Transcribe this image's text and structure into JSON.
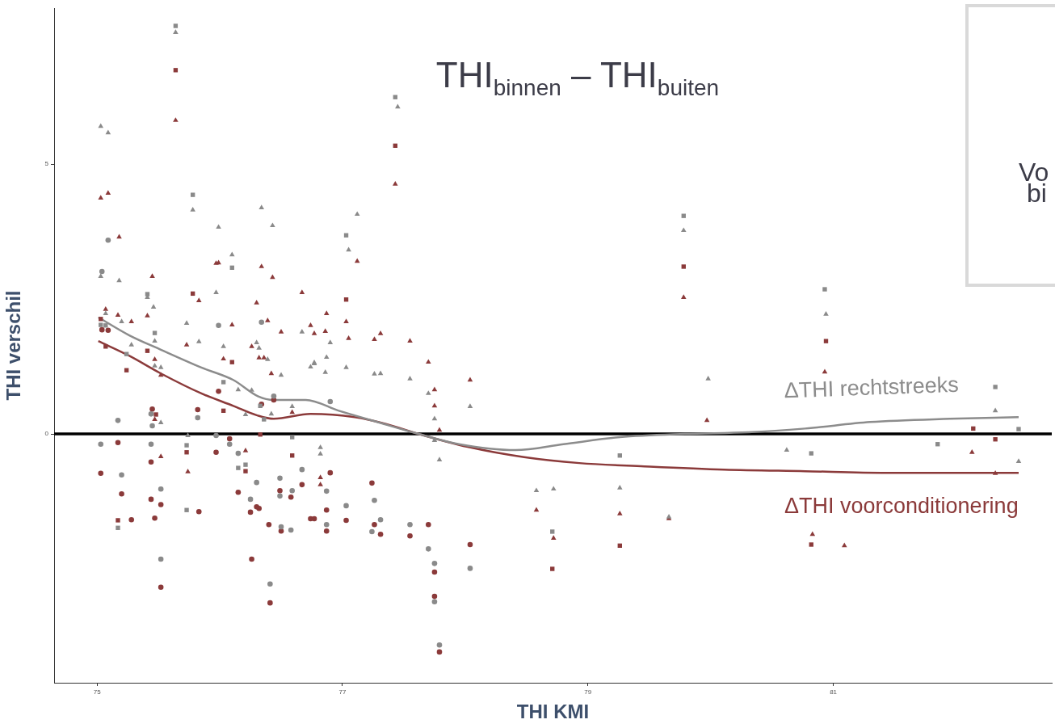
{
  "chart_data": {
    "type": "scatter",
    "title": "THI$_{binnen}$ – THI$_{buiten}$",
    "xlabel": "THI KMI",
    "ylabel": "THI verschil",
    "xlim": [
      74.65,
      82.78
    ],
    "ylim": [
      -4.61,
      7.89
    ],
    "xticks": [
      75,
      77,
      79,
      81
    ],
    "yticks": [
      0,
      5
    ],
    "grid": false,
    "legend": false,
    "ref_lines": [
      {
        "axis": "y",
        "value": 0,
        "color": "#000000"
      }
    ],
    "annotations": [
      "Vo",
      "bi"
    ],
    "series": [
      {
        "marker": "triangle",
        "color": "#8a8a8a",
        "x": [
          75.03,
          75.09,
          75.64,
          75.78,
          75.99,
          76.34,
          76.43,
          76.1,
          75.97,
          75.03,
          75.18,
          75.41,
          75.46,
          75.07,
          75.2,
          75.73,
          75.83,
          75.28,
          75.47,
          76.03,
          76.3,
          76.32,
          76.39,
          76.67,
          76.77,
          76.9,
          77.12,
          77.05,
          77.45,
          76.87,
          76.86,
          77.03,
          77.26,
          77.31,
          77.55,
          77.7,
          77.75,
          77.75,
          77.79,
          78.04,
          76.82,
          75.74,
          75.52,
          75.47,
          75.52,
          76.15,
          76.26,
          76.21,
          76.42,
          76.59,
          76.5,
          76.82,
          76.74,
          76.77,
          79.98,
          78.58,
          78.72,
          79.26,
          79.66,
          80.62,
          80.94,
          82.32,
          82.51,
          79.78
        ],
        "values": [
          5.7,
          5.58,
          7.44,
          4.15,
          3.83,
          4.19,
          3.86,
          3.32,
          2.62,
          2.92,
          2.84,
          2.53,
          2.35,
          2.23,
          2.08,
          2.05,
          1.71,
          1.65,
          1.72,
          1.62,
          1.69,
          1.59,
          1.38,
          1.89,
          1.32,
          1.69,
          4.07,
          3.41,
          6.06,
          1.42,
          1.14,
          1.23,
          1.11,
          1.12,
          1.02,
          0.75,
          0.28,
          -0.12,
          -0.48,
          0.51,
          -0.37,
          -0.03,
          0.21,
          1.26,
          1.23,
          0.82,
          0.81,
          0.36,
          0.37,
          0.51,
          1.09,
          -0.25,
          1.24,
          1.3,
          1.02,
          -1.05,
          -1.02,
          -1.0,
          -1.54,
          -0.3,
          2.22,
          0.43,
          -0.51,
          3.77
        ]
      },
      {
        "marker": "triangle",
        "color": "#8b3a3a",
        "x": [
          75.64,
          75.03,
          75.09,
          75.18,
          77.43,
          79.78,
          79.97,
          80.93,
          75.45,
          75.97,
          75.99,
          76.34,
          76.43,
          76.67,
          75.83,
          76.3,
          75.07,
          75.17,
          75.41,
          75.28,
          76.1,
          76.39,
          76.5,
          76.74,
          76.77,
          75.73,
          76.26,
          75.47,
          76.03,
          76.32,
          76.36,
          75.52,
          76.42,
          75.47,
          76.59,
          75.52,
          75.74,
          76.21,
          76.82,
          76.87,
          76.86,
          77.03,
          77.05,
          77.12,
          77.26,
          77.31,
          77.55,
          77.7,
          77.75,
          77.75,
          77.79,
          78.04,
          76.82,
          78.58,
          78.72,
          79.26,
          79.66,
          80.83,
          81.09,
          82.13,
          82.32
        ],
        "values": [
          5.81,
          4.37,
          4.46,
          3.65,
          4.63,
          2.53,
          0.25,
          1.15,
          2.92,
          3.16,
          3.17,
          3.1,
          2.9,
          2.62,
          2.47,
          2.43,
          2.31,
          2.2,
          2.19,
          2.08,
          2.02,
          2.1,
          1.89,
          2.01,
          1.86,
          1.65,
          1.62,
          1.38,
          1.39,
          1.41,
          1.41,
          1.09,
          1.12,
          0.27,
          0.4,
          -0.42,
          -0.7,
          -0.31,
          -0.81,
          2.23,
          1.9,
          2.08,
          1.77,
          3.2,
          1.75,
          1.86,
          1.72,
          1.33,
          0.82,
          0.52,
          0.07,
          1.0,
          -0.94,
          -1.41,
          -1.93,
          -1.48,
          -1.57,
          -1.86,
          -2.07,
          -0.34,
          -0.73
        ]
      },
      {
        "marker": "square",
        "color": "#8a8a8a",
        "x": [
          75.64,
          77.43,
          75.78,
          77.03,
          76.1,
          79.78,
          80.93,
          82.32,
          82.51,
          81.85,
          80.82,
          79.26,
          78.71,
          75.41,
          75.03,
          75.07,
          75.47,
          75.24,
          76.03,
          76.33,
          76.36,
          75.73,
          76.59,
          76.15,
          76.21,
          75.73,
          75.17
        ],
        "values": [
          7.56,
          6.24,
          4.43,
          3.68,
          3.08,
          4.04,
          2.68,
          0.87,
          0.09,
          -0.19,
          -0.36,
          -0.4,
          -1.81,
          2.59,
          2.02,
          2.01,
          1.87,
          1.48,
          0.96,
          0.52,
          0.27,
          -0.21,
          -0.06,
          -0.63,
          -0.57,
          -1.41,
          -1.74
        ]
      },
      {
        "marker": "square",
        "color": "#8b3a3a",
        "x": [
          75.64,
          77.43,
          79.78,
          80.94,
          77.03,
          82.14,
          82.32,
          80.82,
          79.26,
          78.71,
          75.78,
          75.03,
          75.07,
          75.24,
          75.41,
          76.1,
          75.48,
          76.03,
          76.33,
          75.73,
          76.21,
          76.59,
          75.17
        ],
        "values": [
          6.74,
          5.34,
          3.1,
          1.72,
          2.49,
          0.1,
          -0.1,
          -2.05,
          -2.07,
          -2.5,
          2.6,
          2.13,
          1.62,
          1.18,
          1.54,
          1.33,
          0.36,
          0.43,
          -0.01,
          -0.34,
          -0.69,
          -0.4,
          -1.6
        ]
      },
      {
        "marker": "circle",
        "color": "#8a8a8a",
        "x": [
          75.09,
          75.04,
          75.99,
          76.34,
          76.44,
          75.17,
          75.44,
          75.45,
          75.82,
          75.03,
          75.44,
          75.97,
          76.08,
          76.15,
          75.2,
          75.52,
          76.3,
          76.49,
          76.67,
          76.25,
          76.49,
          76.59,
          76.5,
          76.58,
          75.52,
          76.41,
          76.9,
          76.87,
          77.26,
          77.03,
          77.31,
          77.24,
          76.87,
          77.55,
          77.7,
          77.75,
          77.75,
          77.79,
          78.04
        ],
        "values": [
          3.59,
          3.01,
          2.01,
          2.07,
          0.7,
          0.25,
          0.37,
          0.15,
          0.3,
          -0.19,
          -0.19,
          -0.03,
          -0.19,
          -0.36,
          -0.76,
          -1.02,
          -0.9,
          -0.82,
          -0.66,
          -1.21,
          -1.15,
          -1.05,
          -1.72,
          -1.78,
          -2.32,
          -2.78,
          0.6,
          -1.06,
          -1.23,
          -1.33,
          -1.59,
          -1.81,
          -1.68,
          -1.68,
          -2.13,
          -2.4,
          -3.11,
          -3.91,
          -2.49
        ]
      },
      {
        "marker": "circle",
        "color": "#8b3a3a",
        "x": [
          75.04,
          75.09,
          75.99,
          76.34,
          76.44,
          75.45,
          75.82,
          75.17,
          75.03,
          75.44,
          75.97,
          76.08,
          75.2,
          75.44,
          75.52,
          75.83,
          75.28,
          75.47,
          76.15,
          76.49,
          76.67,
          76.58,
          76.25,
          76.3,
          76.32,
          76.4,
          76.5,
          76.74,
          76.77,
          76.26,
          75.52,
          76.41,
          76.9,
          77.24,
          76.87,
          77.03,
          77.26,
          77.31,
          76.87,
          77.55,
          77.7,
          77.75,
          77.75,
          77.79,
          78.04
        ],
        "values": [
          1.93,
          1.92,
          0.79,
          0.55,
          0.63,
          0.46,
          0.45,
          -0.16,
          -0.73,
          -0.52,
          -0.34,
          -0.09,
          -1.11,
          -1.21,
          -1.31,
          -1.44,
          -1.59,
          -1.56,
          -1.08,
          -1.05,
          -0.94,
          -1.17,
          -1.45,
          -1.35,
          -1.38,
          -1.68,
          -1.8,
          -1.57,
          -1.57,
          -2.32,
          -2.84,
          -3.13,
          -0.72,
          -0.91,
          -1.41,
          -1.6,
          -1.68,
          -1.86,
          -1.8,
          -1.89,
          -1.68,
          -2.56,
          -3.01,
          -4.04,
          -2.05
        ]
      },
      {
        "type": "line",
        "name": "ΔTHI rechtstreeks",
        "color": "#8c8c8c",
        "x": [
          75.01,
          75.26,
          75.52,
          75.85,
          76.11,
          76.31,
          76.44,
          76.7,
          76.97,
          77.3,
          77.62,
          77.95,
          78.41,
          78.8,
          79.26,
          79.79,
          80.31,
          80.77,
          81.3,
          81.95,
          82.51
        ],
        "values": [
          2.16,
          1.83,
          1.56,
          1.23,
          1.0,
          0.7,
          0.63,
          0.63,
          0.43,
          0.21,
          0,
          -0.19,
          -0.3,
          -0.19,
          -0.06,
          0,
          0.03,
          0.1,
          0.22,
          0.28,
          0.31
        ]
      },
      {
        "type": "line",
        "name": "ΔTHI voorconditionering",
        "color": "#8b3a3a",
        "x": [
          75.01,
          75.26,
          75.52,
          75.85,
          76.11,
          76.31,
          76.44,
          76.74,
          77.1,
          77.36,
          77.62,
          78.02,
          78.48,
          78.93,
          79.46,
          80.11,
          80.77,
          81.43,
          82.51
        ],
        "values": [
          1.72,
          1.45,
          1.12,
          0.75,
          0.52,
          0.34,
          0.28,
          0.37,
          0.31,
          0.18,
          0,
          -0.24,
          -0.43,
          -0.54,
          -0.6,
          -0.66,
          -0.69,
          -0.72,
          -0.72
        ]
      }
    ]
  }
}
